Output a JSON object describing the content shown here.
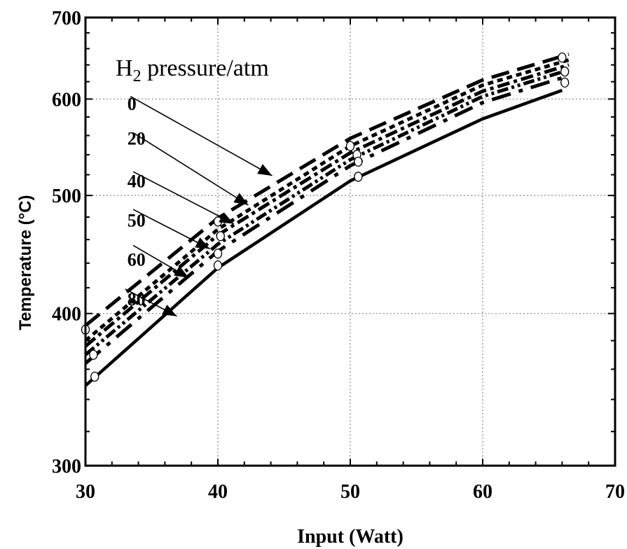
{
  "chart_data": {
    "type": "line",
    "xlabel": "Input (Watt)",
    "ylabel": "Temperature (°C)",
    "xlim": [
      30,
      70
    ],
    "ylim": [
      300,
      700
    ],
    "y_scale": "log",
    "grid": true,
    "x_ticks": [
      "30",
      "40",
      "50",
      "60",
      "70"
    ],
    "y_ticks": [
      "300",
      "400",
      "500",
      "600",
      "700"
    ],
    "legend_title": {
      "main": "H",
      "sub": "2",
      "rest": " pressure/atm"
    },
    "series": [
      {
        "name": "0",
        "x": [
          30,
          40,
          50,
          60,
          66.5
        ],
        "y": [
          391,
          479,
          557,
          622,
          653
        ]
      },
      {
        "name": "20",
        "x": [
          30,
          40,
          50,
          60,
          66.5
        ],
        "y": [
          380,
          469,
          549,
          616,
          646
        ]
      },
      {
        "name": "40",
        "x": [
          30,
          40,
          50,
          60,
          66.5
        ],
        "y": [
          376,
          464,
          542,
          609,
          640
        ]
      },
      {
        "name": "50",
        "x": [
          30,
          40,
          50,
          60,
          66.5
        ],
        "y": [
          370,
          456,
          535,
          603,
          634
        ]
      },
      {
        "name": "60",
        "x": [
          30,
          40,
          50,
          60,
          66.5
        ],
        "y": [
          364,
          450,
          529,
          596,
          627
        ]
      },
      {
        "name": "80",
        "x": [
          30,
          40,
          50,
          60,
          66
        ],
        "y": [
          349,
          436,
          514,
          578,
          610
        ]
      }
    ],
    "markers": {
      "x": [
        30,
        30.6,
        30.7,
        40,
        40,
        40,
        40.2,
        50,
        50.5,
        50.6,
        50.6,
        66,
        66.2,
        66.2
      ],
      "y": [
        388,
        370,
        355,
        476,
        448,
        438,
        463,
        549,
        540,
        533,
        518,
        649,
        632,
        619
      ]
    },
    "annotations": [
      {
        "label": "0",
        "label_at": [
          30.2,
          595
        ],
        "arrow_from": [
          33.4,
          603
        ],
        "arrow_to": [
          44.1,
          519
        ]
      },
      {
        "label": "20",
        "label_at": [
          30.2,
          557
        ],
        "arrow_from": [
          33.6,
          563
        ],
        "arrow_to": [
          42.3,
          491
        ]
      },
      {
        "label": "40",
        "label_at": [
          30.2,
          514
        ],
        "arrow_from": [
          33.6,
          523
        ],
        "arrow_to": [
          41.2,
          474
        ]
      },
      {
        "label": "50",
        "label_at": [
          30.2,
          477
        ],
        "arrow_from": [
          33.6,
          487
        ],
        "arrow_to": [
          39.4,
          452
        ]
      },
      {
        "label": "60",
        "label_at": [
          30.2,
          443
        ],
        "arrow_from": [
          33.6,
          455
        ],
        "arrow_to": [
          37.8,
          428
        ]
      },
      {
        "label": "80",
        "label_at": [
          30.2,
          411
        ],
        "arrow_from": [
          33.0,
          419
        ],
        "arrow_to": [
          36.9,
          398
        ]
      }
    ]
  }
}
